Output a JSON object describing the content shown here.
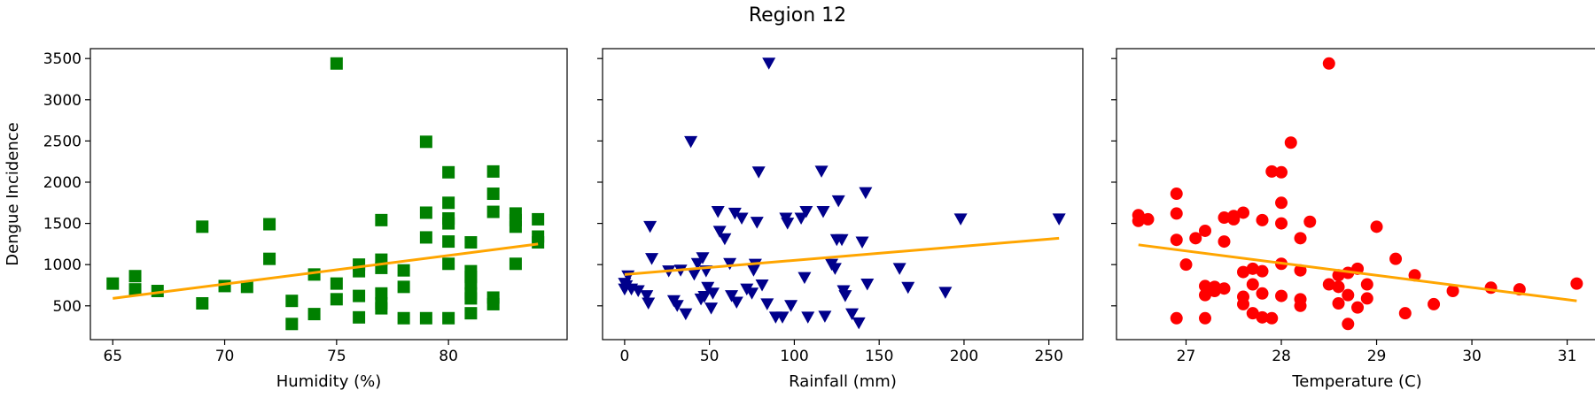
{
  "figure_title": "Region 12",
  "chart_data": [
    {
      "type": "scatter",
      "title": "Region 12",
      "xlabel": "Humidity (%)",
      "ylabel": "Dengue Incidence",
      "xlim": [
        64,
        85.3
      ],
      "ylim": [
        90,
        3620
      ],
      "xticks": [
        65,
        70,
        75,
        80
      ],
      "yticks": [
        500,
        1000,
        1500,
        2000,
        2500,
        3000,
        3500
      ],
      "grid": false,
      "marker": "square",
      "color": "#008000",
      "trend_color": "#FFA500",
      "points": [
        {
          "x": 65,
          "y": 770
        },
        {
          "x": 66,
          "y": 700
        },
        {
          "x": 66,
          "y": 860
        },
        {
          "x": 67,
          "y": 680
        },
        {
          "x": 69,
          "y": 1460
        },
        {
          "x": 69,
          "y": 530
        },
        {
          "x": 70,
          "y": 740
        },
        {
          "x": 71,
          "y": 730
        },
        {
          "x": 72,
          "y": 1490
        },
        {
          "x": 72,
          "y": 1070
        },
        {
          "x": 73,
          "y": 560
        },
        {
          "x": 73,
          "y": 280
        },
        {
          "x": 74,
          "y": 880
        },
        {
          "x": 74,
          "y": 400
        },
        {
          "x": 75,
          "y": 3440
        },
        {
          "x": 75,
          "y": 770
        },
        {
          "x": 75,
          "y": 580
        },
        {
          "x": 76,
          "y": 1000
        },
        {
          "x": 76,
          "y": 920
        },
        {
          "x": 76,
          "y": 620
        },
        {
          "x": 76,
          "y": 360
        },
        {
          "x": 77,
          "y": 1540
        },
        {
          "x": 77,
          "y": 1060
        },
        {
          "x": 77,
          "y": 960
        },
        {
          "x": 77,
          "y": 650
        },
        {
          "x": 77,
          "y": 530
        },
        {
          "x": 77,
          "y": 470
        },
        {
          "x": 78,
          "y": 930
        },
        {
          "x": 78,
          "y": 730
        },
        {
          "x": 78,
          "y": 350
        },
        {
          "x": 79,
          "y": 2490
        },
        {
          "x": 79,
          "y": 1630
        },
        {
          "x": 79,
          "y": 1330
        },
        {
          "x": 79,
          "y": 350
        },
        {
          "x": 80,
          "y": 2120
        },
        {
          "x": 80,
          "y": 1750
        },
        {
          "x": 80,
          "y": 1560
        },
        {
          "x": 80,
          "y": 1500
        },
        {
          "x": 80,
          "y": 1280
        },
        {
          "x": 80,
          "y": 1010
        },
        {
          "x": 80,
          "y": 350
        },
        {
          "x": 81,
          "y": 1270
        },
        {
          "x": 81,
          "y": 920
        },
        {
          "x": 81,
          "y": 850
        },
        {
          "x": 81,
          "y": 770
        },
        {
          "x": 81,
          "y": 650
        },
        {
          "x": 81,
          "y": 590
        },
        {
          "x": 81,
          "y": 410
        },
        {
          "x": 82,
          "y": 2130
        },
        {
          "x": 82,
          "y": 1860
        },
        {
          "x": 82,
          "y": 1640
        },
        {
          "x": 82,
          "y": 600
        },
        {
          "x": 82,
          "y": 520
        },
        {
          "x": 83,
          "y": 1620
        },
        {
          "x": 83,
          "y": 1540
        },
        {
          "x": 83,
          "y": 1460
        },
        {
          "x": 83,
          "y": 1010
        },
        {
          "x": 84,
          "y": 1550
        },
        {
          "x": 84,
          "y": 1340
        },
        {
          "x": 84,
          "y": 1270
        }
      ],
      "trend": [
        {
          "x": 65,
          "y": 590
        },
        {
          "x": 84,
          "y": 1250
        }
      ]
    },
    {
      "type": "scatter",
      "xlabel": "Rainfall (mm)",
      "ylabel": "",
      "xlim": [
        -13,
        270
      ],
      "ylim": [
        90,
        3620
      ],
      "xticks": [
        0,
        50,
        100,
        150,
        200,
        250
      ],
      "yticks": [
        500,
        1000,
        1500,
        2000,
        2500,
        3000,
        3500
      ],
      "grid": false,
      "marker": "triangle-down",
      "color": "#00008B",
      "trend_color": "#FFA500",
      "points": [
        {
          "x": 0,
          "y": 770
        },
        {
          "x": 0,
          "y": 700
        },
        {
          "x": 1,
          "y": 740
        },
        {
          "x": 2,
          "y": 860
        },
        {
          "x": 4,
          "y": 700
        },
        {
          "x": 8,
          "y": 680
        },
        {
          "x": 13,
          "y": 620
        },
        {
          "x": 14,
          "y": 530
        },
        {
          "x": 15,
          "y": 1460
        },
        {
          "x": 16,
          "y": 1070
        },
        {
          "x": 26,
          "y": 920
        },
        {
          "x": 29,
          "y": 560
        },
        {
          "x": 31,
          "y": 500
        },
        {
          "x": 33,
          "y": 930
        },
        {
          "x": 36,
          "y": 400
        },
        {
          "x": 39,
          "y": 2490
        },
        {
          "x": 41,
          "y": 880
        },
        {
          "x": 43,
          "y": 1010
        },
        {
          "x": 45,
          "y": 580
        },
        {
          "x": 46,
          "y": 1080
        },
        {
          "x": 47,
          "y": 610
        },
        {
          "x": 48,
          "y": 920
        },
        {
          "x": 49,
          "y": 720
        },
        {
          "x": 51,
          "y": 470
        },
        {
          "x": 52,
          "y": 650
        },
        {
          "x": 55,
          "y": 1640
        },
        {
          "x": 56,
          "y": 1400
        },
        {
          "x": 59,
          "y": 1310
        },
        {
          "x": 62,
          "y": 1010
        },
        {
          "x": 63,
          "y": 620
        },
        {
          "x": 65,
          "y": 1620
        },
        {
          "x": 66,
          "y": 540
        },
        {
          "x": 69,
          "y": 1560
        },
        {
          "x": 72,
          "y": 700
        },
        {
          "x": 75,
          "y": 650
        },
        {
          "x": 76,
          "y": 930
        },
        {
          "x": 77,
          "y": 1000
        },
        {
          "x": 78,
          "y": 1510
        },
        {
          "x": 79,
          "y": 2120
        },
        {
          "x": 81,
          "y": 750
        },
        {
          "x": 84,
          "y": 520
        },
        {
          "x": 85,
          "y": 3440
        },
        {
          "x": 89,
          "y": 360
        },
        {
          "x": 93,
          "y": 360
        },
        {
          "x": 95,
          "y": 1560
        },
        {
          "x": 96,
          "y": 1500
        },
        {
          "x": 98,
          "y": 500
        },
        {
          "x": 104,
          "y": 1560
        },
        {
          "x": 106,
          "y": 840
        },
        {
          "x": 107,
          "y": 1640
        },
        {
          "x": 108,
          "y": 360
        },
        {
          "x": 116,
          "y": 2130
        },
        {
          "x": 117,
          "y": 1640
        },
        {
          "x": 118,
          "y": 370
        },
        {
          "x": 122,
          "y": 1000
        },
        {
          "x": 124,
          "y": 950
        },
        {
          "x": 125,
          "y": 1300
        },
        {
          "x": 126,
          "y": 1770
        },
        {
          "x": 128,
          "y": 1300
        },
        {
          "x": 129,
          "y": 680
        },
        {
          "x": 130,
          "y": 620
        },
        {
          "x": 134,
          "y": 400
        },
        {
          "x": 138,
          "y": 290
        },
        {
          "x": 140,
          "y": 1270
        },
        {
          "x": 142,
          "y": 1870
        },
        {
          "x": 143,
          "y": 760
        },
        {
          "x": 162,
          "y": 950
        },
        {
          "x": 167,
          "y": 720
        },
        {
          "x": 189,
          "y": 660
        },
        {
          "x": 198,
          "y": 1550
        },
        {
          "x": 256,
          "y": 1550
        }
      ],
      "trend": [
        {
          "x": 0,
          "y": 880
        },
        {
          "x": 256,
          "y": 1320
        }
      ]
    },
    {
      "type": "scatter",
      "xlabel": "Temperature (C)",
      "ylabel": "",
      "xlim": [
        26.27,
        31.32
      ],
      "ylim": [
        90,
        3620
      ],
      "xticks": [
        27,
        28,
        29,
        30,
        31
      ],
      "yticks": [
        500,
        1000,
        1500,
        2000,
        2500,
        3000,
        3500
      ],
      "grid": false,
      "marker": "circle",
      "color": "#FF0000",
      "trend_color": "#FFA500",
      "points": [
        {
          "x": 26.5,
          "y": 1530
        },
        {
          "x": 26.5,
          "y": 1600
        },
        {
          "x": 26.6,
          "y": 1550
        },
        {
          "x": 26.9,
          "y": 1860
        },
        {
          "x": 26.9,
          "y": 1620
        },
        {
          "x": 26.9,
          "y": 1300
        },
        {
          "x": 26.9,
          "y": 350
        },
        {
          "x": 27.0,
          "y": 1000
        },
        {
          "x": 27.1,
          "y": 1320
        },
        {
          "x": 27.2,
          "y": 1410
        },
        {
          "x": 27.2,
          "y": 740
        },
        {
          "x": 27.2,
          "y": 630
        },
        {
          "x": 27.2,
          "y": 350
        },
        {
          "x": 27.3,
          "y": 730
        },
        {
          "x": 27.3,
          "y": 680
        },
        {
          "x": 27.4,
          "y": 1280
        },
        {
          "x": 27.4,
          "y": 1570
        },
        {
          "x": 27.4,
          "y": 710
        },
        {
          "x": 27.5,
          "y": 1590
        },
        {
          "x": 27.5,
          "y": 1550
        },
        {
          "x": 27.6,
          "y": 1630
        },
        {
          "x": 27.6,
          "y": 910
        },
        {
          "x": 27.6,
          "y": 610
        },
        {
          "x": 27.6,
          "y": 520
        },
        {
          "x": 27.7,
          "y": 950
        },
        {
          "x": 27.7,
          "y": 760
        },
        {
          "x": 27.7,
          "y": 410
        },
        {
          "x": 27.8,
          "y": 1540
        },
        {
          "x": 27.8,
          "y": 920
        },
        {
          "x": 27.8,
          "y": 650
        },
        {
          "x": 27.8,
          "y": 360
        },
        {
          "x": 27.9,
          "y": 2130
        },
        {
          "x": 27.9,
          "y": 350
        },
        {
          "x": 28.0,
          "y": 2120
        },
        {
          "x": 28.0,
          "y": 1750
        },
        {
          "x": 28.0,
          "y": 1500
        },
        {
          "x": 28.0,
          "y": 1010
        },
        {
          "x": 28.0,
          "y": 620
        },
        {
          "x": 28.1,
          "y": 2480
        },
        {
          "x": 28.2,
          "y": 930
        },
        {
          "x": 28.2,
          "y": 580
        },
        {
          "x": 28.2,
          "y": 500
        },
        {
          "x": 28.2,
          "y": 1320
        },
        {
          "x": 28.3,
          "y": 1520
        },
        {
          "x": 28.5,
          "y": 3440
        },
        {
          "x": 28.5,
          "y": 760
        },
        {
          "x": 28.6,
          "y": 870
        },
        {
          "x": 28.6,
          "y": 730
        },
        {
          "x": 28.6,
          "y": 530
        },
        {
          "x": 28.7,
          "y": 900
        },
        {
          "x": 28.7,
          "y": 630
        },
        {
          "x": 28.7,
          "y": 280
        },
        {
          "x": 28.8,
          "y": 950
        },
        {
          "x": 28.8,
          "y": 480
        },
        {
          "x": 28.9,
          "y": 760
        },
        {
          "x": 28.9,
          "y": 590
        },
        {
          "x": 29.0,
          "y": 1460
        },
        {
          "x": 29.2,
          "y": 1070
        },
        {
          "x": 29.3,
          "y": 410
        },
        {
          "x": 29.4,
          "y": 870
        },
        {
          "x": 29.6,
          "y": 520
        },
        {
          "x": 29.8,
          "y": 680
        },
        {
          "x": 30.2,
          "y": 720
        },
        {
          "x": 30.5,
          "y": 700
        },
        {
          "x": 31.1,
          "y": 770
        }
      ],
      "trend": [
        {
          "x": 26.5,
          "y": 1240
        },
        {
          "x": 31.1,
          "y": 560
        }
      ]
    }
  ]
}
